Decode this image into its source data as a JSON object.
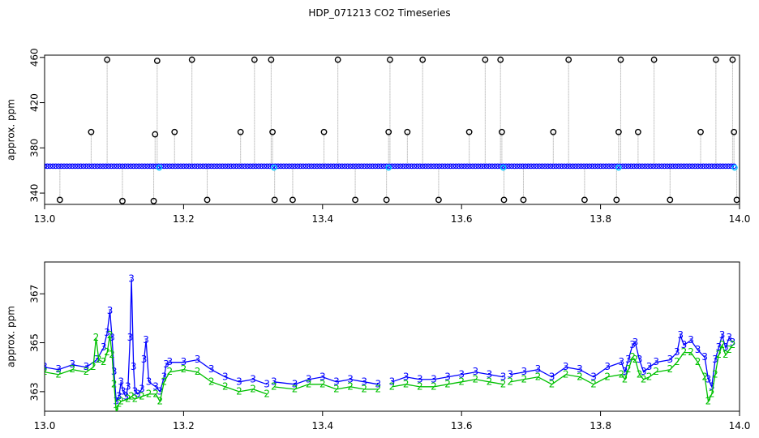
{
  "title": "HDP_071213  CO2 Timeseries",
  "colors": {
    "point": "#000000",
    "drop": "#9a9a9a",
    "blue": "#0000ff",
    "cyan": "#00c8ff",
    "green": "#00c000"
  },
  "chart_data": [
    {
      "type": "scatter",
      "title": "HDP_071213  CO2 Timeseries",
      "xlabel": "",
      "ylabel": "approx. ppm",
      "xlim": [
        13.0,
        14.0
      ],
      "ylim": [
        330,
        462
      ],
      "x_ticks": [
        13.0,
        13.2,
        13.4,
        13.6,
        13.8,
        14.0
      ],
      "x_tick_labels": [
        "13.0",
        "13.2",
        "13.4",
        "13.6",
        "13.8",
        "14.0"
      ],
      "y_ticks": [
        340,
        380,
        420,
        460
      ],
      "y_tick_labels": [
        "340",
        "380",
        "420",
        "460"
      ],
      "baseline": {
        "x_start": 13.0,
        "x_end": 13.995,
        "value": 364
      },
      "outliers": [
        {
          "x": 13.022,
          "y": 334
        },
        {
          "x": 13.067,
          "y": 394
        },
        {
          "x": 13.09,
          "y": 458
        },
        {
          "x": 13.112,
          "y": 333
        },
        {
          "x": 13.157,
          "y": 333
        },
        {
          "x": 13.159,
          "y": 392
        },
        {
          "x": 13.162,
          "y": 457
        },
        {
          "x": 13.187,
          "y": 394
        },
        {
          "x": 13.212,
          "y": 458
        },
        {
          "x": 13.234,
          "y": 334
        },
        {
          "x": 13.282,
          "y": 394
        },
        {
          "x": 13.302,
          "y": 458
        },
        {
          "x": 13.326,
          "y": 458
        },
        {
          "x": 13.328,
          "y": 394
        },
        {
          "x": 13.331,
          "y": 334
        },
        {
          "x": 13.357,
          "y": 334
        },
        {
          "x": 13.402,
          "y": 394
        },
        {
          "x": 13.422,
          "y": 458
        },
        {
          "x": 13.447,
          "y": 334
        },
        {
          "x": 13.492,
          "y": 334
        },
        {
          "x": 13.495,
          "y": 394
        },
        {
          "x": 13.497,
          "y": 458
        },
        {
          "x": 13.522,
          "y": 394
        },
        {
          "x": 13.544,
          "y": 458
        },
        {
          "x": 13.567,
          "y": 334
        },
        {
          "x": 13.611,
          "y": 394
        },
        {
          "x": 13.634,
          "y": 458
        },
        {
          "x": 13.656,
          "y": 458
        },
        {
          "x": 13.658,
          "y": 394
        },
        {
          "x": 13.661,
          "y": 334
        },
        {
          "x": 13.689,
          "y": 334
        },
        {
          "x": 13.732,
          "y": 394
        },
        {
          "x": 13.754,
          "y": 458
        },
        {
          "x": 13.777,
          "y": 334
        },
        {
          "x": 13.823,
          "y": 334
        },
        {
          "x": 13.826,
          "y": 394
        },
        {
          "x": 13.829,
          "y": 458
        },
        {
          "x": 13.854,
          "y": 394
        },
        {
          "x": 13.877,
          "y": 458
        },
        {
          "x": 13.9,
          "y": 334
        },
        {
          "x": 13.944,
          "y": 394
        },
        {
          "x": 13.966,
          "y": 458
        },
        {
          "x": 13.99,
          "y": 458
        },
        {
          "x": 13.992,
          "y": 394
        },
        {
          "x": 13.996,
          "y": 334
        }
      ]
    },
    {
      "type": "line",
      "xlabel": "",
      "ylabel": "approx. ppm",
      "xlim": [
        13.0,
        14.0
      ],
      "ylim": [
        362.2,
        368.3
      ],
      "x_ticks": [
        13.0,
        13.2,
        13.4,
        13.6,
        13.8,
        14.0
      ],
      "x_tick_labels": [
        "13.0",
        "13.2",
        "13.4",
        "13.6",
        "13.8",
        "14.0"
      ],
      "y_ticks": [
        363,
        365,
        367
      ],
      "y_tick_labels": [
        "363",
        "365",
        "367"
      ],
      "series": [
        {
          "marker": "3",
          "color": "blue",
          "points": [
            [
              13.0,
              364.0
            ],
            [
              13.02,
              363.9
            ],
            [
              13.04,
              364.1
            ],
            [
              13.06,
              364.0
            ],
            [
              13.075,
              364.3
            ],
            [
              13.085,
              364.8
            ],
            [
              13.09,
              365.4
            ],
            [
              13.094,
              366.3
            ],
            [
              13.097,
              365.2
            ],
            [
              13.1,
              363.8
            ],
            [
              13.103,
              362.6
            ],
            [
              13.107,
              362.8
            ],
            [
              13.11,
              363.4
            ],
            [
              13.113,
              363.0
            ],
            [
              13.117,
              362.8
            ],
            [
              13.12,
              363.2
            ],
            [
              13.123,
              365.2
            ],
            [
              13.125,
              367.6
            ],
            [
              13.128,
              364.0
            ],
            [
              13.13,
              363.0
            ],
            [
              13.134,
              362.9
            ],
            [
              13.14,
              363.1
            ],
            [
              13.143,
              364.3
            ],
            [
              13.146,
              365.1
            ],
            [
              13.15,
              363.4
            ],
            [
              13.16,
              363.2
            ],
            [
              13.166,
              363.0
            ],
            [
              13.172,
              363.6
            ],
            [
              13.175,
              364.1
            ],
            [
              13.18,
              364.2
            ],
            [
              13.2,
              364.2
            ],
            [
              13.22,
              364.3
            ],
            [
              13.24,
              363.9
            ],
            [
              13.26,
              363.6
            ],
            [
              13.28,
              363.4
            ],
            [
              13.3,
              363.5
            ],
            [
              13.32,
              363.3
            ],
            null,
            [
              13.33,
              363.4
            ],
            [
              13.36,
              363.3
            ],
            [
              13.38,
              363.5
            ],
            [
              13.4,
              363.6
            ],
            [
              13.42,
              363.4
            ],
            [
              13.44,
              363.5
            ],
            [
              13.46,
              363.4
            ],
            [
              13.48,
              363.3
            ],
            null,
            [
              13.5,
              363.4
            ],
            [
              13.52,
              363.6
            ],
            [
              13.54,
              363.5
            ],
            [
              13.56,
              363.5
            ],
            [
              13.58,
              363.6
            ],
            [
              13.6,
              363.7
            ],
            [
              13.62,
              363.8
            ],
            [
              13.64,
              363.7
            ],
            [
              13.66,
              363.6
            ],
            null,
            [
              13.67,
              363.7
            ],
            [
              13.69,
              363.8
            ],
            [
              13.71,
              363.9
            ],
            [
              13.73,
              363.6
            ],
            [
              13.75,
              364.0
            ],
            [
              13.77,
              363.9
            ],
            [
              13.79,
              363.6
            ],
            [
              13.81,
              364.0
            ],
            [
              13.83,
              364.2
            ],
            [
              13.835,
              363.8
            ],
            [
              13.84,
              364.3
            ],
            [
              13.846,
              364.9
            ],
            [
              13.85,
              365.0
            ],
            [
              13.856,
              364.3
            ],
            [
              13.862,
              363.8
            ],
            [
              13.87,
              364.0
            ],
            [
              13.88,
              364.2
            ],
            [
              13.9,
              364.3
            ],
            [
              13.91,
              364.6
            ],
            [
              13.915,
              365.3
            ],
            [
              13.92,
              364.9
            ],
            [
              13.93,
              365.1
            ],
            [
              13.94,
              364.7
            ],
            [
              13.95,
              364.4
            ],
            [
              13.955,
              363.5
            ],
            [
              13.96,
              363.2
            ],
            [
              13.965,
              364.3
            ],
            [
              13.97,
              364.8
            ],
            [
              13.975,
              365.3
            ],
            [
              13.98,
              364.8
            ],
            [
              13.985,
              365.2
            ],
            [
              13.99,
              365.0
            ]
          ]
        },
        {
          "marker": "2",
          "color": "green",
          "points": [
            [
              13.0,
              363.8
            ],
            [
              13.02,
              363.7
            ],
            [
              13.04,
              363.9
            ],
            [
              13.06,
              363.8
            ],
            [
              13.07,
              364.0
            ],
            [
              13.074,
              365.2
            ],
            [
              13.078,
              364.3
            ],
            [
              13.085,
              364.2
            ],
            [
              13.09,
              364.6
            ],
            [
              13.094,
              365.3
            ],
            [
              13.097,
              364.5
            ],
            [
              13.1,
              363.3
            ],
            [
              13.103,
              362.2
            ],
            [
              13.107,
              362.5
            ],
            [
              13.11,
              362.6
            ],
            [
              13.12,
              362.7
            ],
            [
              13.125,
              362.8
            ],
            [
              13.13,
              362.7
            ],
            [
              13.14,
              362.8
            ],
            [
              13.15,
              362.9
            ],
            [
              13.16,
              362.9
            ],
            [
              13.166,
              362.6
            ],
            [
              13.172,
              363.4
            ],
            [
              13.18,
              363.8
            ],
            [
              13.2,
              363.9
            ],
            [
              13.22,
              363.8
            ],
            [
              13.24,
              363.4
            ],
            [
              13.26,
              363.2
            ],
            [
              13.28,
              363.0
            ],
            [
              13.3,
              363.1
            ],
            [
              13.32,
              362.9
            ],
            null,
            [
              13.33,
              363.2
            ],
            [
              13.36,
              363.1
            ],
            [
              13.38,
              363.3
            ],
            [
              13.4,
              363.3
            ],
            [
              13.42,
              363.1
            ],
            [
              13.44,
              363.2
            ],
            [
              13.46,
              363.1
            ],
            [
              13.48,
              363.1
            ],
            null,
            [
              13.5,
              363.2
            ],
            [
              13.52,
              363.3
            ],
            [
              13.54,
              363.2
            ],
            [
              13.56,
              363.2
            ],
            [
              13.58,
              363.3
            ],
            [
              13.6,
              363.4
            ],
            [
              13.62,
              363.5
            ],
            [
              13.64,
              363.4
            ],
            [
              13.66,
              363.3
            ],
            null,
            [
              13.67,
              363.4
            ],
            [
              13.69,
              363.5
            ],
            [
              13.71,
              363.6
            ],
            [
              13.73,
              363.3
            ],
            [
              13.75,
              363.7
            ],
            [
              13.77,
              363.6
            ],
            [
              13.79,
              363.3
            ],
            [
              13.81,
              363.6
            ],
            [
              13.83,
              363.7
            ],
            [
              13.835,
              363.5
            ],
            [
              13.84,
              363.9
            ],
            [
              13.846,
              364.4
            ],
            [
              13.85,
              364.3
            ],
            [
              13.856,
              363.7
            ],
            [
              13.862,
              363.5
            ],
            [
              13.87,
              363.6
            ],
            [
              13.88,
              363.8
            ],
            [
              13.9,
              363.9
            ],
            [
              13.91,
              364.2
            ],
            [
              13.92,
              364.6
            ],
            [
              13.93,
              364.6
            ],
            [
              13.94,
              364.2
            ],
            [
              13.95,
              363.6
            ],
            [
              13.955,
              362.6
            ],
            [
              13.96,
              362.9
            ],
            [
              13.965,
              363.7
            ],
            [
              13.97,
              364.5
            ],
            [
              13.975,
              364.9
            ],
            [
              13.98,
              364.5
            ],
            [
              13.985,
              364.7
            ],
            [
              13.99,
              364.9
            ]
          ]
        }
      ]
    }
  ]
}
